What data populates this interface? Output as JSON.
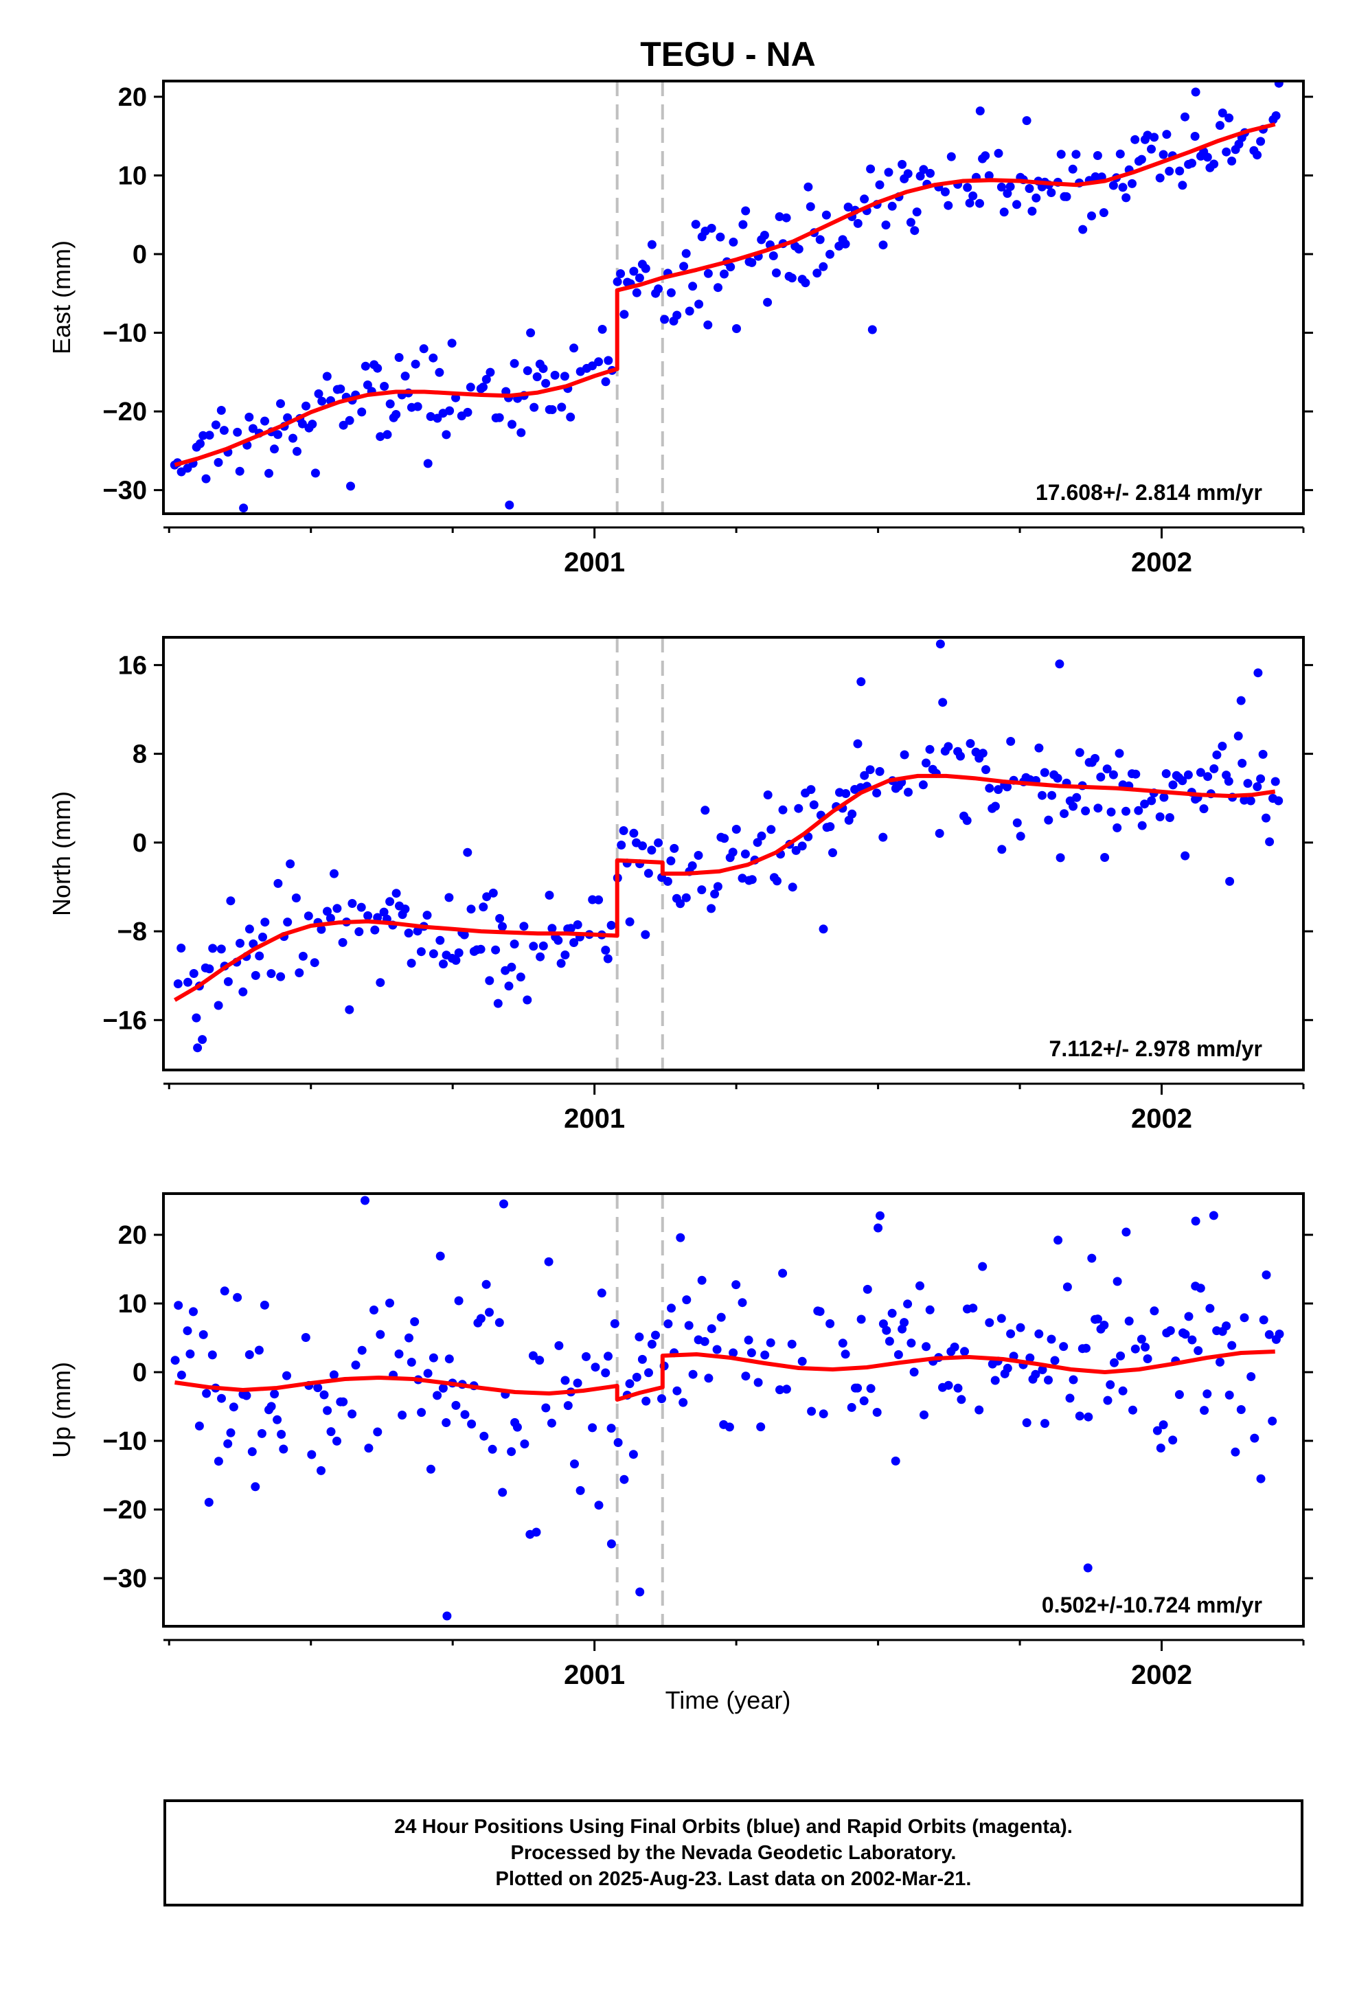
{
  "figure": {
    "title": "TEGU - NA",
    "xlabel": "Time (year)"
  },
  "footer": {
    "line1": "24 Hour Positions Using Final Orbits (blue) and Rapid Orbits (magenta).",
    "line2": "Processed by the Nevada Geodetic Laboratory.",
    "line3": "Plotted on 2025-Aug-23. Last data on 2002-Mar-21."
  },
  "colors": {
    "data_points": "#0000ff",
    "model_fit": "#ff0000",
    "event_lines": "#c0c0c0",
    "axes": "#000000"
  },
  "chart_data": [
    {
      "type": "scatter",
      "name": "east",
      "ylabel": "East (mm)",
      "xlim": [
        2000.24,
        2002.25
      ],
      "ylim": [
        -33,
        22
      ],
      "yticks": [
        -30,
        -20,
        -10,
        0,
        10,
        20
      ],
      "xticks": [
        2001,
        2002
      ],
      "event_lines": [
        2001.04,
        2001.12
      ],
      "rate_label": "17.608+/- 2.814 mm/yr",
      "model": [
        [
          2000.26,
          -26.8
        ],
        [
          2000.3,
          -26.0
        ],
        [
          2000.35,
          -24.8
        ],
        [
          2000.4,
          -23.3
        ],
        [
          2000.45,
          -21.8
        ],
        [
          2000.5,
          -20.1
        ],
        [
          2000.55,
          -18.8
        ],
        [
          2000.6,
          -17.9
        ],
        [
          2000.65,
          -17.5
        ],
        [
          2000.7,
          -17.5
        ],
        [
          2000.75,
          -17.7
        ],
        [
          2000.8,
          -17.9
        ],
        [
          2000.85,
          -18.0
        ],
        [
          2000.9,
          -17.6
        ],
        [
          2000.95,
          -16.8
        ],
        [
          2001.0,
          -15.5
        ],
        [
          2001.04,
          -14.6
        ],
        [
          2001.04,
          -4.6
        ],
        [
          2001.08,
          -3.9
        ],
        [
          2001.12,
          -3.0
        ],
        [
          2001.18,
          -2.0
        ],
        [
          2001.25,
          -0.7
        ],
        [
          2001.3,
          0.4
        ],
        [
          2001.35,
          1.6
        ],
        [
          2001.4,
          3.3
        ],
        [
          2001.45,
          5.0
        ],
        [
          2001.5,
          6.6
        ],
        [
          2001.55,
          7.9
        ],
        [
          2001.6,
          8.8
        ],
        [
          2001.65,
          9.3
        ],
        [
          2001.7,
          9.4
        ],
        [
          2001.75,
          9.3
        ],
        [
          2001.8,
          9.0
        ],
        [
          2001.85,
          8.8
        ],
        [
          2001.9,
          9.3
        ],
        [
          2001.95,
          10.4
        ],
        [
          2002.0,
          11.7
        ],
        [
          2002.05,
          13.0
        ],
        [
          2002.1,
          14.4
        ],
        [
          2002.15,
          15.6
        ],
        [
          2002.2,
          16.5
        ]
      ],
      "scatter": {
        "start": 2000.26,
        "end": 2002.21,
        "step": 0.0055,
        "noise": 2.6,
        "outlier_every": 23,
        "outlier_amp": 6
      },
      "extra_points": [
        [
          2000.85,
          -31.9
        ],
        [
          2001.49,
          -9.6
        ],
        [
          2002.06,
          20.6
        ],
        [
          2000.57,
          -29.5
        ],
        [
          2001.68,
          18.2
        ],
        [
          2001.2,
          -9.0
        ]
      ]
    },
    {
      "type": "scatter",
      "name": "north",
      "ylabel": "North (mm)",
      "xlim": [
        2000.24,
        2002.25
      ],
      "ylim": [
        -20.5,
        18.5
      ],
      "yticks": [
        -16,
        -8,
        0,
        8,
        16
      ],
      "xticks": [
        2001,
        2002
      ],
      "event_lines": [
        2001.04,
        2001.12
      ],
      "rate_label": "7.112+/- 2.978 mm/yr",
      "model": [
        [
          2000.26,
          -14.2
        ],
        [
          2000.3,
          -13.0
        ],
        [
          2000.35,
          -11.2
        ],
        [
          2000.4,
          -9.6
        ],
        [
          2000.45,
          -8.3
        ],
        [
          2000.5,
          -7.5
        ],
        [
          2000.55,
          -7.2
        ],
        [
          2000.6,
          -7.1
        ],
        [
          2000.65,
          -7.3
        ],
        [
          2000.7,
          -7.6
        ],
        [
          2000.75,
          -7.8
        ],
        [
          2000.8,
          -8.0
        ],
        [
          2000.85,
          -8.1
        ],
        [
          2000.9,
          -8.2
        ],
        [
          2000.95,
          -8.2
        ],
        [
          2001.0,
          -8.3
        ],
        [
          2001.04,
          -8.4
        ],
        [
          2001.04,
          -1.6
        ],
        [
          2001.08,
          -1.7
        ],
        [
          2001.12,
          -1.8
        ],
        [
          2001.12,
          -2.8
        ],
        [
          2001.16,
          -2.8
        ],
        [
          2001.22,
          -2.6
        ],
        [
          2001.27,
          -2.0
        ],
        [
          2001.32,
          -0.9
        ],
        [
          2001.37,
          0.8
        ],
        [
          2001.42,
          2.8
        ],
        [
          2001.47,
          4.5
        ],
        [
          2001.52,
          5.6
        ],
        [
          2001.57,
          6.0
        ],
        [
          2001.62,
          6.0
        ],
        [
          2001.67,
          5.8
        ],
        [
          2001.72,
          5.5
        ],
        [
          2001.77,
          5.3
        ],
        [
          2001.82,
          5.1
        ],
        [
          2001.87,
          5.0
        ],
        [
          2001.92,
          4.9
        ],
        [
          2001.97,
          4.7
        ],
        [
          2002.02,
          4.5
        ],
        [
          2002.07,
          4.3
        ],
        [
          2002.12,
          4.2
        ],
        [
          2002.16,
          4.3
        ],
        [
          2002.2,
          4.6
        ]
      ],
      "scatter": {
        "start": 2000.26,
        "end": 2002.21,
        "step": 0.0055,
        "noise": 2.3,
        "outlier_every": 19,
        "outlier_amp": 6
      },
      "extra_points": [
        [
          2000.3,
          -18.5
        ],
        [
          2001.61,
          17.9
        ],
        [
          2001.82,
          16.1
        ],
        [
          2002.17,
          15.3
        ],
        [
          2001.47,
          14.5
        ],
        [
          2002.14,
          12.8
        ],
        [
          2000.83,
          -14.5
        ],
        [
          2002.12,
          -3.5
        ]
      ]
    },
    {
      "type": "scatter",
      "name": "up",
      "ylabel": "Up (mm)",
      "xlim": [
        2000.24,
        2002.25
      ],
      "ylim": [
        -37,
        26
      ],
      "yticks": [
        -30,
        -20,
        -10,
        0,
        10,
        20
      ],
      "xticks": [
        2001,
        2002
      ],
      "event_lines": [
        2001.04,
        2001.12
      ],
      "rate_label": "0.502+/-10.724 mm/yr",
      "xlabel": "Time (year)",
      "model": [
        [
          2000.26,
          -1.5
        ],
        [
          2000.32,
          -2.2
        ],
        [
          2000.38,
          -2.6
        ],
        [
          2000.44,
          -2.3
        ],
        [
          2000.5,
          -1.6
        ],
        [
          2000.56,
          -1.0
        ],
        [
          2000.62,
          -0.8
        ],
        [
          2000.68,
          -1.0
        ],
        [
          2000.74,
          -1.6
        ],
        [
          2000.8,
          -2.3
        ],
        [
          2000.86,
          -2.9
        ],
        [
          2000.92,
          -3.1
        ],
        [
          2000.98,
          -2.7
        ],
        [
          2001.04,
          -2.0
        ],
        [
          2001.04,
          -4.0
        ],
        [
          2001.08,
          -3.0
        ],
        [
          2001.12,
          -2.2
        ],
        [
          2001.12,
          2.4
        ],
        [
          2001.18,
          2.6
        ],
        [
          2001.24,
          2.1
        ],
        [
          2001.3,
          1.3
        ],
        [
          2001.36,
          0.6
        ],
        [
          2001.42,
          0.4
        ],
        [
          2001.48,
          0.7
        ],
        [
          2001.54,
          1.4
        ],
        [
          2001.6,
          2.0
        ],
        [
          2001.66,
          2.2
        ],
        [
          2001.72,
          1.9
        ],
        [
          2001.78,
          1.2
        ],
        [
          2001.84,
          0.4
        ],
        [
          2001.9,
          0.0
        ],
        [
          2001.96,
          0.4
        ],
        [
          2002.02,
          1.2
        ],
        [
          2002.08,
          2.1
        ],
        [
          2002.14,
          2.8
        ],
        [
          2002.2,
          3.0
        ]
      ],
      "scatter": {
        "start": 2000.26,
        "end": 2002.21,
        "step": 0.0055,
        "noise": 7.5,
        "outlier_every": 29,
        "outlier_amp": 5
      },
      "extra_points": [
        [
          2000.84,
          24.5
        ],
        [
          2000.74,
          -35.5
        ],
        [
          2001.08,
          -32.0
        ],
        [
          2001.03,
          -25.0
        ],
        [
          2001.87,
          -28.5
        ],
        [
          2002.06,
          22.0
        ],
        [
          2001.5,
          21.0
        ]
      ]
    }
  ]
}
